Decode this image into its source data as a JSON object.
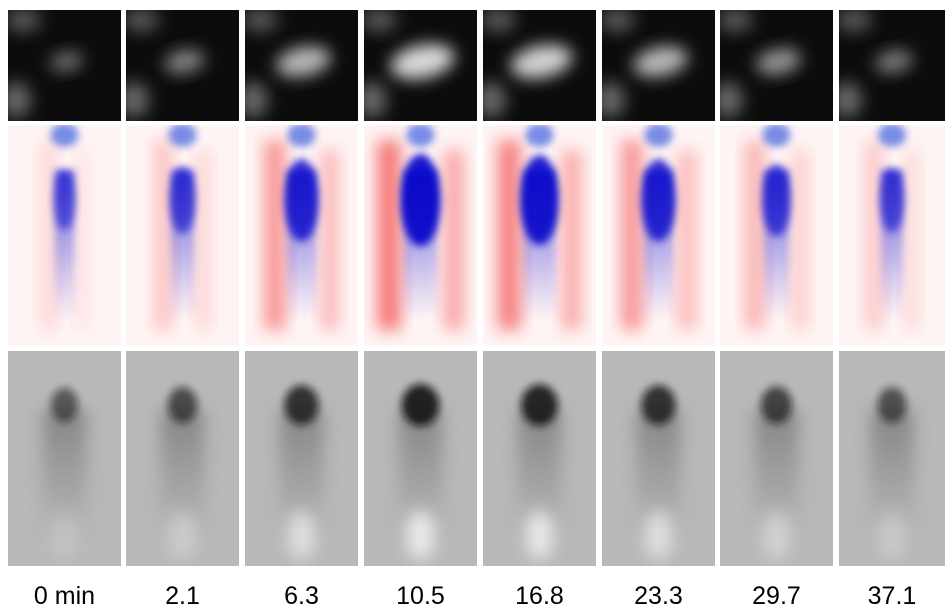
{
  "labels": [
    "0 min",
    "2.1",
    "6.3",
    "10.5",
    "16.8",
    "23.3",
    "29.7",
    "37.1"
  ]
}
